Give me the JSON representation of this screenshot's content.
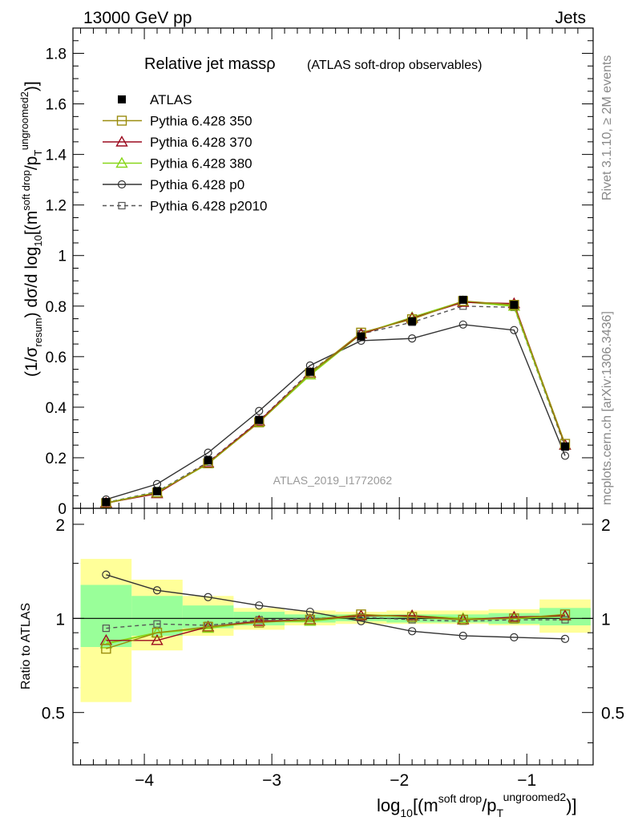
{
  "header": {
    "left": "13000 GeV pp",
    "right": "Jets"
  },
  "side_labels": {
    "rivet": "Rivet 3.1.10, ≥ 2M events",
    "mcplots": "mcplots.cern.ch [arXiv:1306.3436]"
  },
  "chart_data": [
    {
      "type": "line",
      "title": "Relative jet massρ",
      "subtitle": "(ATLAS soft-drop observables)",
      "watermark": "ATLAS_2019_I1772062",
      "xlabel": "log10[(m^{soft drop}/p_T^{ungroomed})^2]",
      "ylabel": "(1/σresum) dσ/d log10[(m^{soft drop}/p_T^{ungroomed})^2]",
      "xlim": [
        -4.56,
        -0.48
      ],
      "ylim": [
        0,
        1.9
      ],
      "x_ticks": [
        -4,
        -3,
        -2,
        -1
      ],
      "x_tick_labels": [
        "−4",
        "−3",
        "−2",
        "−1"
      ],
      "y_ticks": [
        0,
        0.2,
        0.4,
        0.6,
        0.8,
        1,
        1.2,
        1.4,
        1.6,
        1.8
      ],
      "y_tick_labels": [
        "0",
        "0.2",
        "0.4",
        "0.6",
        "0.8",
        "1",
        "1.2",
        "1.4",
        "1.6",
        "1.8"
      ],
      "legend_position": "top-left",
      "x": [
        -4.3,
        -3.9,
        -3.5,
        -3.1,
        -2.7,
        -2.3,
        -1.9,
        -1.5,
        -1.1,
        -0.7
      ],
      "series": [
        {
          "name": "ATLAS",
          "color": "#000000",
          "marker": "filled-square",
          "style": "none",
          "values": [
            0.025,
            0.068,
            0.19,
            0.35,
            0.54,
            0.68,
            0.74,
            0.825,
            0.805,
            0.245
          ]
        },
        {
          "name": "Pythia 6.428 350",
          "color": "#9a8c0e",
          "marker": "open-square",
          "style": "solid",
          "values": [
            0.02,
            0.062,
            0.178,
            0.34,
            0.535,
            0.695,
            0.748,
            0.82,
            0.805,
            0.255
          ]
        },
        {
          "name": "Pythia 6.428 370",
          "color": "#9b0a1e",
          "marker": "open-triangle",
          "style": "solid",
          "values": [
            0.021,
            0.058,
            0.18,
            0.345,
            0.535,
            0.69,
            0.752,
            0.815,
            0.81,
            0.25
          ]
        },
        {
          "name": "Pythia 6.428 380",
          "color": "#88d61a",
          "marker": "open-triangle",
          "style": "solid",
          "values": [
            0.021,
            0.062,
            0.177,
            0.342,
            0.528,
            0.69,
            0.755,
            0.818,
            0.8,
            0.25
          ]
        },
        {
          "name": "Pythia 6.428 p0",
          "color": "#333333",
          "marker": "open-circle",
          "style": "solid",
          "values": [
            0.035,
            0.096,
            0.22,
            0.385,
            0.565,
            0.663,
            0.672,
            0.727,
            0.705,
            0.208
          ]
        },
        {
          "name": "Pythia 6.428 p2010",
          "color": "#555555",
          "marker": "open-square-small",
          "style": "dashed",
          "values": [
            0.023,
            0.066,
            0.183,
            0.347,
            0.54,
            0.69,
            0.736,
            0.8,
            0.795,
            0.242
          ]
        }
      ]
    },
    {
      "type": "line",
      "ylabel": "Ratio to ATLAS",
      "xlim": [
        -4.56,
        -0.48
      ],
      "ylim": [
        0.34,
        2.25
      ],
      "y_ticks": [
        0.5,
        1,
        2
      ],
      "y_tick_labels": [
        "0.5",
        "1",
        "2"
      ],
      "bin_edges": [
        -4.5,
        -4.1,
        -3.7,
        -3.3,
        -2.9,
        -2.5,
        -2.1,
        -1.7,
        -1.3,
        -0.9,
        -0.5
      ],
      "band_outer": [
        [
          0.54,
          1.55
        ],
        [
          0.79,
          1.33
        ],
        [
          0.88,
          1.18
        ],
        [
          0.92,
          1.08
        ],
        [
          0.95,
          1.06
        ],
        [
          0.96,
          1.05
        ],
        [
          0.96,
          1.06
        ],
        [
          0.96,
          1.06
        ],
        [
          0.95,
          1.07
        ],
        [
          0.9,
          1.15
        ]
      ],
      "band_inner": [
        [
          0.81,
          1.28
        ],
        [
          0.88,
          1.18
        ],
        [
          0.93,
          1.1
        ],
        [
          0.95,
          1.05
        ],
        [
          0.97,
          1.03
        ],
        [
          0.98,
          1.03
        ],
        [
          0.97,
          1.03
        ],
        [
          0.97,
          1.03
        ],
        [
          0.96,
          1.04
        ],
        [
          0.95,
          1.08
        ]
      ],
      "x": [
        -4.3,
        -3.9,
        -3.5,
        -3.1,
        -2.7,
        -2.3,
        -1.9,
        -1.5,
        -1.1,
        -0.7
      ],
      "series": [
        {
          "name": "Pythia 6.428 350",
          "color": "#9a8c0e",
          "marker": "open-square",
          "style": "solid",
          "values": [
            0.8,
            0.9,
            0.94,
            0.97,
            0.99,
            1.03,
            1.01,
            0.99,
            1.0,
            1.03
          ]
        },
        {
          "name": "Pythia 6.428 370",
          "color": "#9b0a1e",
          "marker": "open-triangle",
          "style": "solid",
          "values": [
            0.85,
            0.85,
            0.94,
            0.98,
            0.99,
            1.02,
            1.02,
            0.99,
            1.01,
            1.02
          ]
        },
        {
          "name": "Pythia 6.428 380",
          "color": "#88d61a",
          "marker": "open-triangle",
          "style": "solid",
          "values": [
            0.83,
            0.9,
            0.93,
            0.98,
            0.98,
            1.02,
            1.02,
            1.0,
            1.0,
            1.02
          ]
        },
        {
          "name": "Pythia 6.428 p0",
          "color": "#333333",
          "marker": "open-circle",
          "style": "solid",
          "values": [
            1.38,
            1.23,
            1.17,
            1.1,
            1.05,
            0.98,
            0.91,
            0.88,
            0.87,
            0.86
          ]
        },
        {
          "name": "Pythia 6.428 p2010",
          "color": "#555555",
          "marker": "open-square-small",
          "style": "dashed",
          "values": [
            0.93,
            0.96,
            0.95,
            0.99,
            1.0,
            1.01,
            0.99,
            0.98,
            0.99,
            0.99
          ]
        }
      ]
    }
  ]
}
